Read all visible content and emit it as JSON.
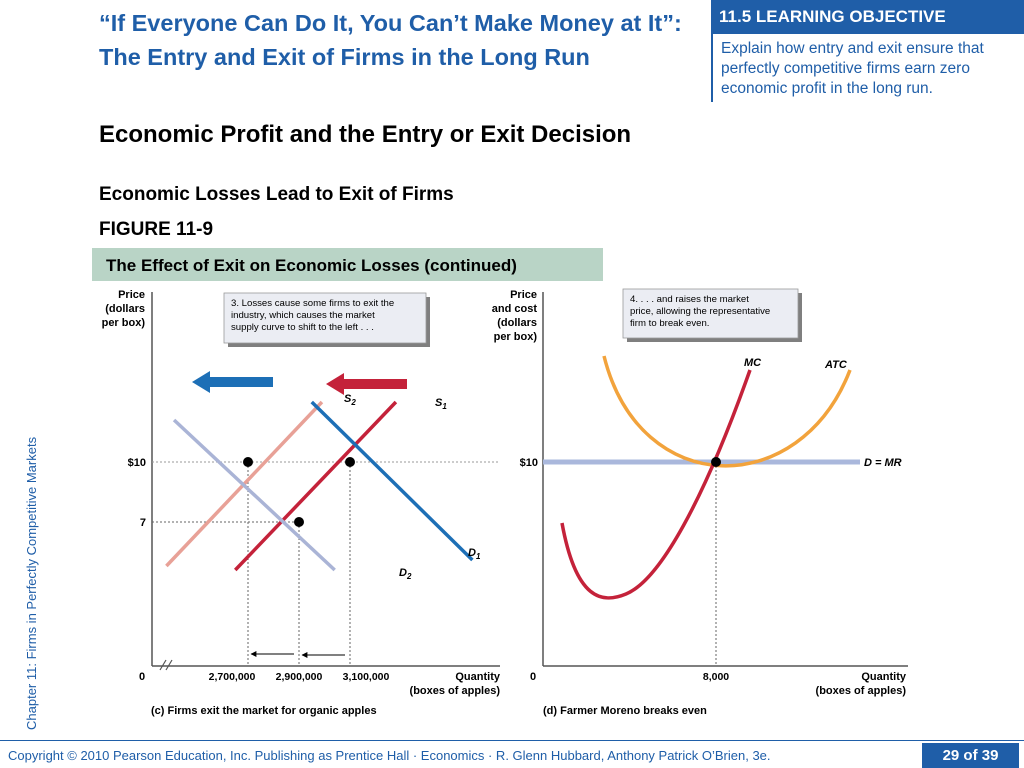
{
  "slide": {
    "title": "“If Everyone Can Do It, You Can’t Make Money at It”: The Entry and Exit of Firms in the Long Run",
    "learning_objective": {
      "header": "11.5 LEARNING OBJECTIVE",
      "text": "Explain how entry and exit ensure that perfectly competitive firms earn zero economic profit in the long run."
    },
    "section_heading": "Economic Profit and the Entry or Exit Decision",
    "subheading": "Economic Losses Lead to Exit of Firms",
    "figure_label": "FIGURE 11-9",
    "figure_caption": "The Effect of Exit on Economic Losses (continued)",
    "side_text": "Chapter 11:  Firms in Perfectly Competitive Markets",
    "footer": "Copyright © 2010 Pearson Education, Inc. Publishing as Prentice Hall · Economics · R. Glenn Hubbard, Anthony Patrick O’Brien, 3e.",
    "page_number": "29 of 39"
  },
  "colors": {
    "brand_blue": "#1f5ea8",
    "figure_bar": "#b9d4c6",
    "s1": "#c4223a",
    "s2": "#e8a197",
    "d1": "#1d6fb6",
    "d2": "#aab4d6",
    "mc": "#c4223a",
    "atc": "#f2a33c",
    "dmr": "#aab8dc",
    "callout_bg": "#ebedf3"
  },
  "chart_data": [
    {
      "type": "line",
      "panel_caption": "(c) Firms exit the market for organic apples",
      "ylabel": "Price (dollars per box)",
      "xlabel": "Quantity (boxes of apples)",
      "origin_label": "0",
      "y_ticks": [
        {
          "value": 10,
          "label": "$10"
        },
        {
          "value": 7,
          "label": "7"
        }
      ],
      "x_ticks": [
        {
          "value": 2700000,
          "label": "2,700,000"
        },
        {
          "value": 2900000,
          "label": "2,900,000"
        },
        {
          "value": 3100000,
          "label": "3,100,000"
        }
      ],
      "series": [
        {
          "name": "S1",
          "label_main": "S",
          "label_sub": "1",
          "points": [
            [
              2650000,
              4.6
            ],
            [
              3280000,
              13.0
            ]
          ]
        },
        {
          "name": "S2",
          "label_main": "S",
          "label_sub": "2",
          "points": [
            [
              2380000,
              4.8
            ],
            [
              2990000,
              13.0
            ]
          ]
        },
        {
          "name": "D1",
          "label_main": "D",
          "label_sub": "1",
          "points": [
            [
              2950000,
              13.0
            ],
            [
              3580000,
              5.1
            ]
          ]
        },
        {
          "name": "D2",
          "label_main": "D",
          "label_sub": "2",
          "points": [
            [
              2410000,
              12.1
            ],
            [
              3040000,
              4.6
            ]
          ]
        }
      ],
      "equilibria": [
        {
          "x": 2700000,
          "y": 10
        },
        {
          "x": 3100000,
          "y": 10
        },
        {
          "x": 2900000,
          "y": 7
        }
      ],
      "shift_arrows": [
        {
          "from": 2900000,
          "to": 2700000
        },
        {
          "from": 3100000,
          "to": 2900000
        }
      ],
      "annotation": "3. Losses cause some firms to exit the industry, which causes the market supply curve to shift to the left . . ."
    },
    {
      "type": "line",
      "panel_caption": "(d) Farmer Moreno breaks even",
      "ylabel": "Price and cost (dollars per box)",
      "xlabel": "Quantity (boxes of apples)",
      "origin_label": "0",
      "y_ticks": [
        {
          "value": 10,
          "label": "$10"
        }
      ],
      "x_ticks": [
        {
          "value": 8000,
          "label": "8,000"
        }
      ],
      "series": [
        {
          "name": "MC"
        },
        {
          "name": "ATC"
        },
        {
          "name": "D = MR",
          "price": 10
        }
      ],
      "break_even": {
        "x": 8000,
        "y": 10
      },
      "annotation": "4. . . . and raises the market price, allowing the representative firm to break even."
    }
  ]
}
